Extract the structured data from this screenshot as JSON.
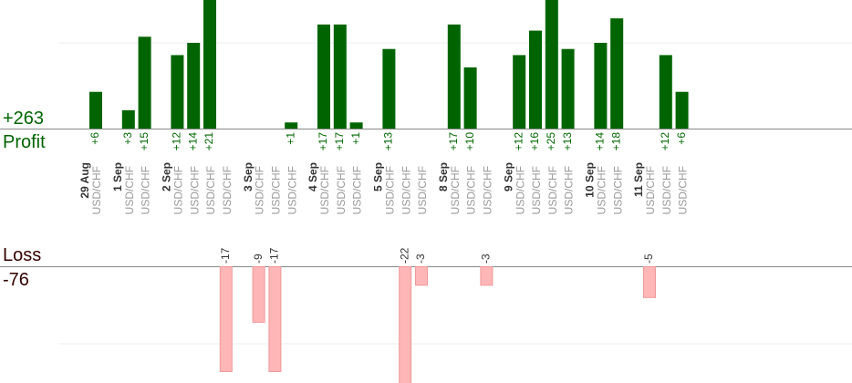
{
  "summary": {
    "profit_value": "+263",
    "profit_label": "Profit",
    "loss_label": "Loss",
    "loss_value": "-76"
  },
  "colors": {
    "profit_bar": "#006400",
    "profit_text": "#006400",
    "loss_bar": "#ffb6b6",
    "loss_bar_edge": "#ee9999",
    "loss_label_text": "#330000",
    "loss_value_text": "#330000",
    "trade_text": "#999999",
    "date_text": "#333333",
    "axis_line": "#888888",
    "grid_line": "#eeeeee"
  },
  "chart_data": {
    "type": "bar",
    "title": "",
    "xlabel": "",
    "ylabel": "",
    "pair": "USD/CHF",
    "groups": [
      {
        "date": "29 Aug",
        "trades": [
          6
        ]
      },
      {
        "date": "1 Sep",
        "trades": [
          3,
          15
        ]
      },
      {
        "date": "2 Sep",
        "trades": [
          12,
          14,
          21,
          -17
        ]
      },
      {
        "date": "3 Sep",
        "trades": [
          -9,
          -17,
          1
        ]
      },
      {
        "date": "4 Sep",
        "trades": [
          17,
          17,
          1
        ]
      },
      {
        "date": "5 Sep",
        "trades": [
          13,
          -22,
          -3
        ]
      },
      {
        "date": "8 Sep",
        "trades": [
          17,
          10,
          -3
        ]
      },
      {
        "date": "9 Sep",
        "trades": [
          12,
          16,
          25,
          13
        ]
      },
      {
        "date": "10 Sep",
        "trades": [
          14,
          18
        ]
      },
      {
        "date": "11 Sep",
        "trades": [
          -5,
          12,
          6
        ]
      }
    ],
    "profit_axis_range": [
      0,
      21
    ],
    "loss_axis_range": [
      0,
      17
    ],
    "grid": true
  }
}
